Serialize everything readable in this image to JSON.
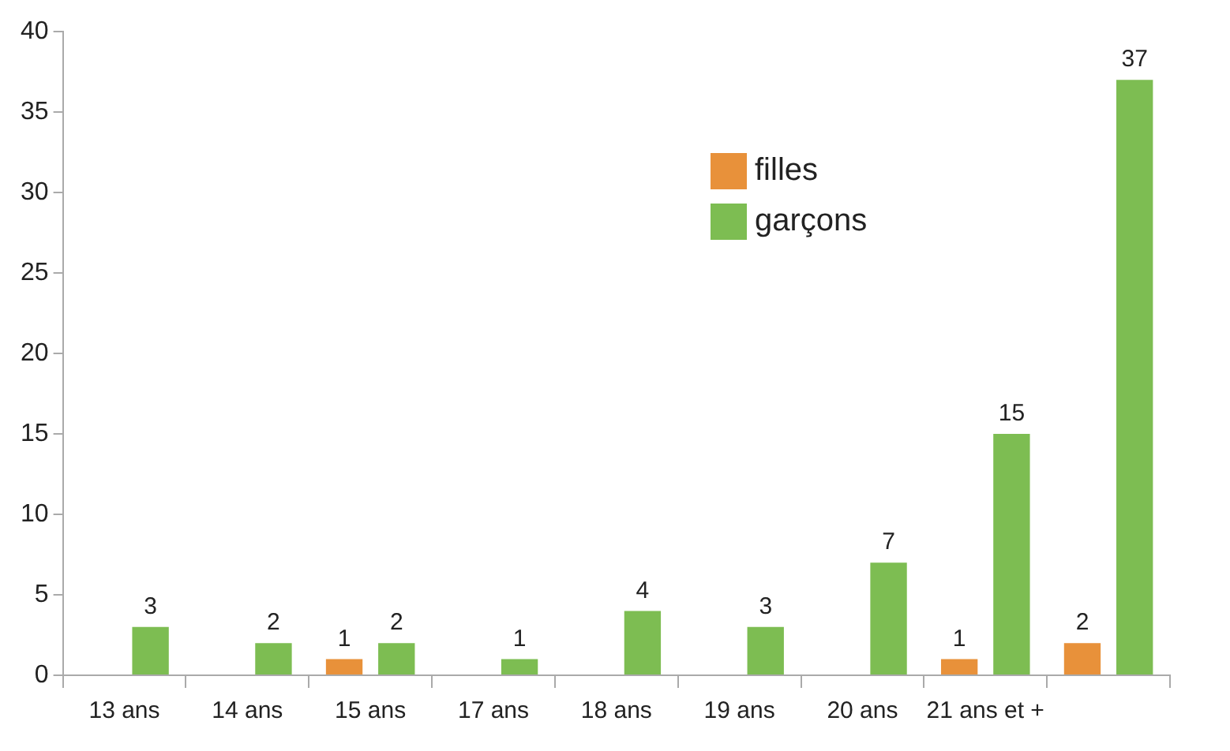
{
  "chart_data": {
    "type": "bar",
    "categories": [
      "13 ans",
      "14 ans",
      "15 ans",
      "17 ans",
      "18 ans",
      "19 ans",
      "20 ans",
      "21 ans et +",
      null
    ],
    "series": [
      {
        "name": "filles",
        "color": "#e8913a",
        "values": [
          0,
          0,
          1,
          0,
          0,
          0,
          0,
          1,
          2
        ],
        "value_labels": [
          null,
          null,
          "1",
          null,
          null,
          null,
          null,
          "1",
          "2"
        ]
      },
      {
        "name": "garçons",
        "color": "#7dbd52",
        "values": [
          3,
          2,
          2,
          1,
          4,
          3,
          7,
          15,
          37
        ],
        "value_labels": [
          "3",
          "2",
          "2",
          "1",
          "4",
          "3",
          "7",
          "15",
          "37"
        ]
      }
    ],
    "ylim": [
      0,
      40
    ],
    "yticks": [
      0,
      5,
      10,
      15,
      20,
      25,
      30,
      35,
      40
    ],
    "grid": false,
    "legend": "top"
  }
}
